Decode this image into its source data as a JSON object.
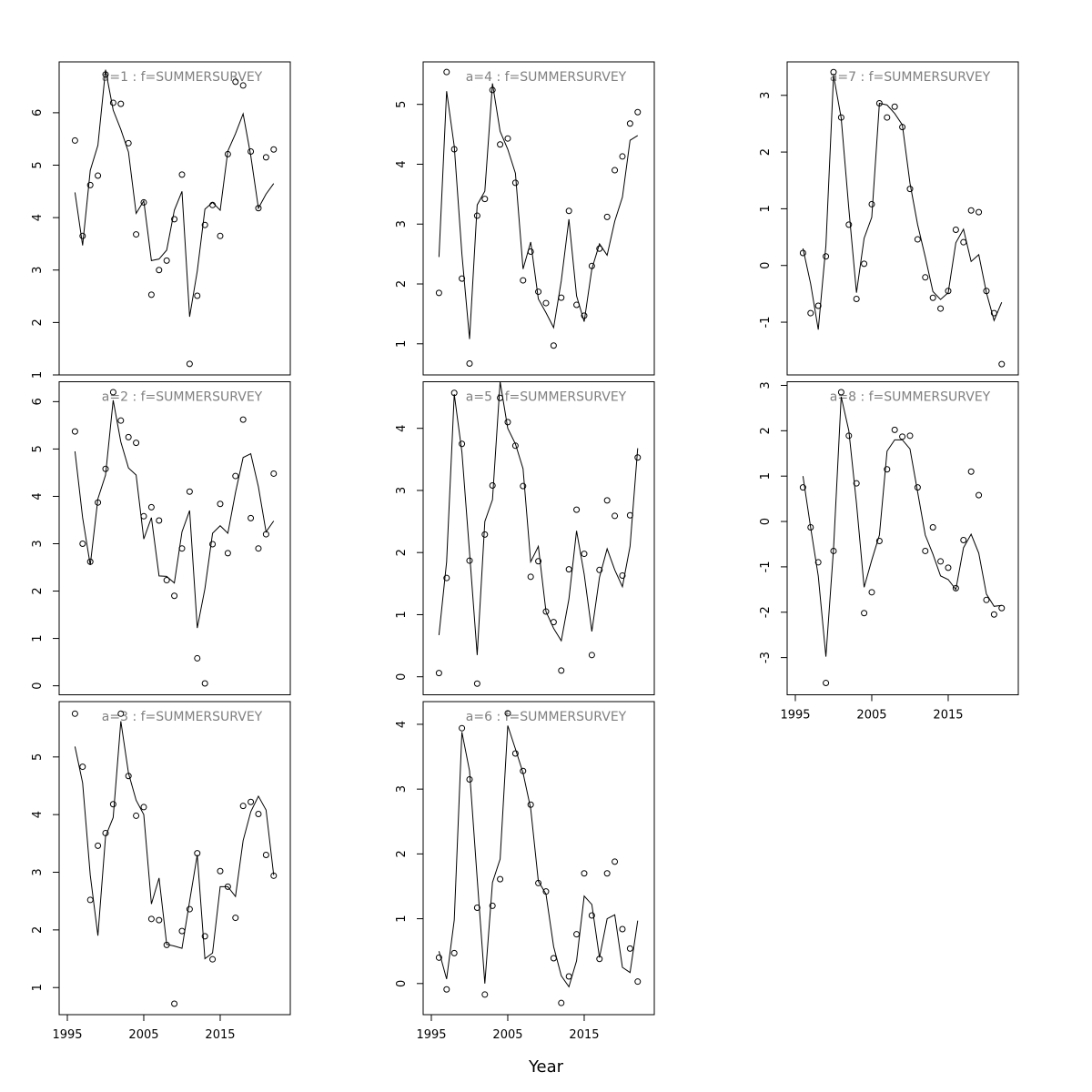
{
  "xlabel": "Year",
  "chart_data": [
    {
      "type": "line",
      "title": "a=1 : f=SUMMERSURVEY",
      "color": "#000000",
      "x": [
        1996,
        1997,
        1998,
        1999,
        2000,
        2001,
        2002,
        2003,
        2004,
        2005,
        2006,
        2007,
        2008,
        2009,
        2010,
        2011,
        2012,
        2013,
        2014,
        2015,
        2016,
        2017,
        2018,
        2019,
        2020,
        2021,
        2022
      ],
      "series": [
        {
          "marker": "circle",
          "values": [
            5.47,
            3.65,
            4.62,
            4.8,
            6.73,
            6.19,
            6.17,
            5.42,
            3.68,
            4.29,
            2.53,
            3.0,
            3.18,
            3.97,
            4.82,
            1.21,
            2.51,
            3.86,
            4.24,
            3.65,
            5.21,
            6.59,
            6.52,
            5.26,
            4.18,
            5.15,
            5.3
          ]
        },
        {
          "marker": "none",
          "values": [
            4.48,
            3.47,
            4.9,
            5.38,
            6.82,
            6.05,
            5.68,
            5.25,
            4.08,
            4.32,
            3.18,
            3.21,
            3.38,
            4.14,
            4.5,
            2.11,
            2.98,
            4.16,
            4.29,
            4.14,
            5.27,
            5.6,
            5.98,
            5.18,
            4.18,
            4.45,
            4.65
          ]
        }
      ],
      "xlim": [
        1993.93,
        2024.17
      ],
      "ylim": [
        1,
        6.97
      ],
      "yticks": [
        1,
        2,
        3,
        4,
        5,
        6
      ]
    },
    {
      "type": "line",
      "title": "a=2 : f=SUMMERSURVEY",
      "color": "#000000",
      "x": [
        1996,
        1997,
        1998,
        1999,
        2000,
        2001,
        2002,
        2003,
        2004,
        2005,
        2006,
        2007,
        2008,
        2009,
        2010,
        2011,
        2012,
        2013,
        2014,
        2015,
        2016,
        2017,
        2018,
        2019,
        2020,
        2021,
        2022
      ],
      "series": [
        {
          "marker": "circle",
          "values": [
            5.37,
            3.0,
            2.62,
            3.87,
            4.58,
            6.2,
            5.6,
            5.25,
            5.13,
            3.58,
            3.77,
            3.49,
            2.23,
            1.9,
            2.9,
            4.1,
            0.58,
            0.05,
            2.99,
            3.84,
            2.8,
            4.43,
            5.62,
            3.54,
            2.9,
            3.2,
            4.48
          ]
        },
        {
          "marker": "none",
          "values": [
            4.95,
            3.55,
            2.55,
            3.95,
            4.45,
            6.03,
            5.15,
            4.6,
            4.45,
            3.1,
            3.55,
            2.32,
            2.31,
            2.17,
            3.25,
            3.7,
            1.22,
            2.05,
            3.22,
            3.38,
            3.22,
            4.08,
            4.82,
            4.9,
            4.2,
            3.25,
            3.48
          ]
        }
      ],
      "xlim": [
        1993.93,
        2024.17
      ],
      "ylim": [
        -0.19,
        6.42
      ],
      "yticks": [
        0,
        1,
        2,
        3,
        4,
        5,
        6
      ]
    },
    {
      "type": "line",
      "title": "a=3 : f=SUMMERSURVEY",
      "color": "#000000",
      "x": [
        1996,
        1997,
        1998,
        1999,
        2000,
        2001,
        2002,
        2003,
        2004,
        2005,
        2006,
        2007,
        2008,
        2009,
        2010,
        2011,
        2012,
        2013,
        2014,
        2015,
        2016,
        2017,
        2018,
        2019,
        2020,
        2021,
        2022
      ],
      "series": [
        {
          "marker": "circle",
          "values": [
            5.75,
            4.83,
            2.52,
            3.46,
            3.68,
            4.18,
            5.75,
            4.67,
            3.98,
            4.13,
            2.19,
            2.17,
            1.74,
            0.72,
            1.98,
            2.36,
            3.33,
            1.89,
            1.49,
            3.02,
            2.75,
            2.21,
            4.15,
            4.22,
            4.01,
            3.3,
            2.94
          ]
        },
        {
          "marker": "none",
          "values": [
            5.18,
            4.55,
            2.95,
            1.9,
            3.62,
            3.95,
            5.62,
            4.72,
            4.25,
            4.0,
            2.45,
            2.9,
            1.75,
            1.72,
            1.68,
            2.5,
            3.3,
            1.5,
            1.6,
            2.75,
            2.75,
            2.58,
            3.55,
            4.05,
            4.32,
            4.08,
            2.95
          ]
        }
      ],
      "xlim": [
        1993.93,
        2024.17
      ],
      "ylim": [
        0.53,
        5.96
      ],
      "yticks": [
        1,
        2,
        3,
        4,
        5
      ],
      "xticks": [
        1995,
        2005,
        2015
      ]
    },
    {
      "type": "line",
      "title": "a=4 : f=SUMMERSURVEY",
      "color": "#000000",
      "x": [
        1996,
        1997,
        1998,
        1999,
        2000,
        2001,
        2002,
        2003,
        2004,
        2005,
        2006,
        2007,
        2008,
        2009,
        2010,
        2011,
        2012,
        2013,
        2014,
        2015,
        2016,
        2017,
        2018,
        2019,
        2020,
        2021,
        2022
      ],
      "series": [
        {
          "marker": "circle",
          "values": [
            1.85,
            5.54,
            4.25,
            2.09,
            0.67,
            3.14,
            3.42,
            5.24,
            4.33,
            4.43,
            3.69,
            2.06,
            2.54,
            1.87,
            1.68,
            0.97,
            1.77,
            3.22,
            1.65,
            1.47,
            2.3,
            2.59,
            3.12,
            3.9,
            4.13,
            4.68,
            4.87
          ]
        },
        {
          "marker": "none",
          "values": [
            2.45,
            5.22,
            4.3,
            2.5,
            1.08,
            3.32,
            3.55,
            5.35,
            4.55,
            4.25,
            3.85,
            2.25,
            2.7,
            1.75,
            1.52,
            1.27,
            2.05,
            3.08,
            1.8,
            1.37,
            2.25,
            2.67,
            2.48,
            3.05,
            3.45,
            4.4,
            4.48
          ]
        }
      ],
      "xlim": [
        1993.93,
        2024.17
      ],
      "ylim": [
        0.48,
        5.71
      ],
      "yticks": [
        1,
        2,
        3,
        4,
        5
      ]
    },
    {
      "type": "line",
      "title": "a=5 : f=SUMMERSURVEY",
      "color": "#000000",
      "x": [
        1996,
        1997,
        1998,
        1999,
        2000,
        2001,
        2002,
        2003,
        2004,
        2005,
        2006,
        2007,
        2008,
        2009,
        2010,
        2011,
        2012,
        2013,
        2014,
        2015,
        2016,
        2017,
        2018,
        2019,
        2020,
        2021,
        2022
      ],
      "series": [
        {
          "marker": "circle",
          "values": [
            0.06,
            1.59,
            4.57,
            3.75,
            1.87,
            -0.11,
            2.29,
            3.08,
            4.49,
            4.1,
            3.72,
            3.07,
            1.61,
            1.86,
            1.05,
            0.88,
            0.1,
            1.73,
            2.69,
            1.98,
            0.35,
            1.72,
            2.84,
            2.59,
            1.63,
            2.6,
            3.53
          ]
        },
        {
          "marker": "none",
          "values": [
            0.67,
            1.85,
            4.55,
            3.62,
            2.0,
            0.35,
            2.5,
            2.85,
            4.75,
            4.0,
            3.75,
            3.35,
            1.85,
            2.1,
            1.05,
            0.78,
            0.58,
            1.25,
            2.35,
            1.65,
            0.73,
            1.6,
            2.06,
            1.72,
            1.45,
            2.1,
            3.68
          ]
        }
      ],
      "xlim": [
        1993.93,
        2024.17
      ],
      "ylim": [
        -0.29,
        4.75
      ],
      "yticks": [
        0,
        1,
        2,
        3,
        4
      ]
    },
    {
      "type": "line",
      "title": "a=6 : f=SUMMERSURVEY",
      "color": "#000000",
      "x": [
        1996,
        1997,
        1998,
        1999,
        2000,
        2001,
        2002,
        2003,
        2004,
        2005,
        2006,
        2007,
        2008,
        2009,
        2010,
        2011,
        2012,
        2013,
        2014,
        2015,
        2016,
        2017,
        2018,
        2019,
        2020,
        2021,
        2022
      ],
      "series": [
        {
          "marker": "circle",
          "values": [
            0.4,
            -0.09,
            0.47,
            3.94,
            3.15,
            1.17,
            -0.17,
            1.2,
            1.61,
            4.17,
            3.55,
            3.28,
            2.76,
            1.55,
            1.42,
            0.39,
            -0.3,
            0.11,
            0.76,
            1.7,
            1.05,
            0.38,
            1.7,
            1.88,
            0.84,
            0.54,
            0.03
          ]
        },
        {
          "marker": "none",
          "values": [
            0.5,
            0.07,
            0.98,
            3.88,
            3.28,
            1.62,
            0.0,
            1.56,
            1.92,
            3.98,
            3.62,
            3.25,
            2.7,
            1.58,
            1.38,
            0.57,
            0.12,
            -0.05,
            0.35,
            1.35,
            1.22,
            0.4,
            1.0,
            1.06,
            0.25,
            0.17,
            0.97
          ]
        }
      ],
      "xlim": [
        1993.93,
        2024.17
      ],
      "ylim": [
        -0.48,
        4.35
      ],
      "yticks": [
        0,
        1,
        2,
        3,
        4
      ],
      "xticks": [
        1995,
        2005,
        2015
      ]
    },
    {
      "type": "line",
      "title": "a=7 : f=SUMMERSURVEY",
      "color": "#000000",
      "x": [
        1996,
        1997,
        1998,
        1999,
        2000,
        2001,
        2002,
        2003,
        2004,
        2005,
        2006,
        2007,
        2008,
        2009,
        2010,
        2011,
        2012,
        2013,
        2014,
        2015,
        2016,
        2017,
        2018,
        2019,
        2020,
        2021,
        2022
      ],
      "series": [
        {
          "marker": "circle",
          "values": [
            0.22,
            -0.84,
            -0.71,
            0.16,
            3.41,
            2.61,
            0.72,
            -0.59,
            0.03,
            1.08,
            2.86,
            2.61,
            2.8,
            2.44,
            1.35,
            0.46,
            -0.21,
            -0.57,
            -0.76,
            -0.45,
            0.63,
            0.41,
            0.97,
            0.94,
            -0.45,
            -0.84,
            -1.74
          ]
        },
        {
          "marker": "none",
          "values": [
            0.3,
            -0.32,
            -1.13,
            0.35,
            3.35,
            2.6,
            1.0,
            -0.48,
            0.48,
            0.85,
            2.86,
            2.83,
            2.68,
            2.48,
            1.45,
            0.72,
            0.15,
            -0.46,
            -0.6,
            -0.48,
            0.4,
            0.64,
            0.07,
            0.19,
            -0.48,
            -0.97,
            -0.65
          ]
        }
      ],
      "xlim": [
        1993.93,
        2024.17
      ],
      "ylim": [
        -1.93,
        3.59
      ],
      "yticks": [
        -1,
        0,
        1,
        2,
        3
      ]
    },
    {
      "type": "line",
      "title": "a=8 : f=SUMMERSURVEY",
      "color": "#000000",
      "x": [
        1996,
        1997,
        1998,
        1999,
        2000,
        2001,
        2002,
        2003,
        2004,
        2005,
        2006,
        2007,
        2008,
        2009,
        2010,
        2011,
        2012,
        2013,
        2014,
        2015,
        2016,
        2017,
        2018,
        2019,
        2020,
        2021,
        2022
      ],
      "series": [
        {
          "marker": "circle",
          "values": [
            0.75,
            -0.13,
            -0.9,
            -3.56,
            -0.65,
            2.85,
            1.89,
            0.84,
            -2.02,
            -1.56,
            -0.43,
            1.15,
            2.02,
            1.87,
            1.89,
            0.75,
            -0.65,
            -0.13,
            -0.88,
            -1.02,
            -1.47,
            -0.41,
            1.1,
            0.58,
            -1.73,
            -2.05,
            -1.91
          ]
        },
        {
          "marker": "none",
          "values": [
            1.0,
            -0.13,
            -1.2,
            -2.98,
            -0.6,
            2.75,
            2.0,
            0.4,
            -1.45,
            -0.85,
            -0.3,
            1.55,
            1.8,
            1.8,
            1.6,
            0.65,
            -0.3,
            -0.72,
            -1.2,
            -1.28,
            -1.5,
            -0.58,
            -0.28,
            -0.7,
            -1.6,
            -1.87,
            -1.85
          ]
        }
      ],
      "xlim": [
        1993.93,
        2024.17
      ],
      "ylim": [
        -3.82,
        3.08
      ],
      "yticks": [
        -3,
        -2,
        -1,
        0,
        1,
        2,
        3
      ],
      "xticks": [
        1995,
        2005,
        2015
      ]
    }
  ]
}
